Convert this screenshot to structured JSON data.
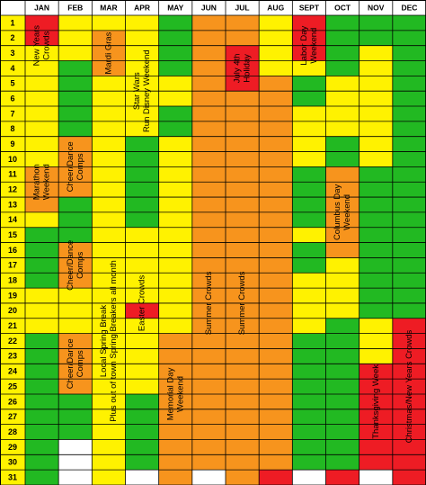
{
  "calendar": {
    "days": [
      1,
      2,
      3,
      4,
      5,
      6,
      7,
      8,
      9,
      10,
      11,
      12,
      13,
      14,
      15,
      16,
      17,
      18,
      19,
      20,
      21,
      22,
      23,
      24,
      25,
      26,
      27,
      28,
      29,
      30,
      31
    ],
    "palette": {
      "G": "#22b922",
      "Y": "#fff200",
      "O": "#f7941d",
      "R": "#ee1c24",
      "W": "#ffffff"
    },
    "months": [
      {
        "name": "JAN",
        "colors": "RRYYYYYYYYOOOYGGGGYYYGGGGGGGGGG",
        "notes": [
          {
            "lines": [
              "New Years",
              "Crowds"
            ],
            "days": [
              1,
              4
            ]
          },
          {
            "lines": [
              "Marathon",
              "Weekend"
            ],
            "days": [
              9,
              14
            ]
          }
        ]
      },
      {
        "name": "FEB",
        "colors": "YYYGGGGGOOOOGGGOOOYYYOOOOGGGWWW",
        "notes": [
          {
            "lines": [
              "Cheer/Dance",
              "Comps"
            ],
            "days": [
              8,
              13
            ]
          },
          {
            "lines": [
              "Cheer/Dance",
              "Comps"
            ],
            "days": [
              15,
              19
            ]
          },
          {
            "lines": [
              "Cheer/Dance",
              "Comps"
            ],
            "days": [
              21,
              26
            ]
          }
        ]
      },
      {
        "name": "MAR",
        "colors": "YOOOYYYYYYYYYYYYYYYYYYYYYYYYYYY",
        "notes": [
          {
            "lines": [
              "Mardi Gras"
            ],
            "days": [
              2,
              4
            ]
          },
          {
            "lines": [
              "Local Spring Break",
              "Plus out of town Spring Breakers all month"
            ],
            "days": [
              14,
              30
            ]
          }
        ]
      },
      {
        "name": "APR",
        "colors": "YYYYYYYYGGGGGGYYYYYRYYYYYGGGGGW",
        "notes": [
          {
            "lines": [
              "Star Wars",
              "Run Disney Weekend"
            ],
            "days": [
              3,
              8
            ]
          },
          {
            "lines": [
              "Easter Crowds"
            ],
            "days": [
              17,
              22
            ]
          }
        ]
      },
      {
        "name": "MAY",
        "colors": "GGGGYYGGYYYYYYYYYYYYYOOOOOOOOOO",
        "notes": [
          {
            "lines": [
              "Memorial Day",
              "Weekend"
            ],
            "days": [
              23,
              28
            ]
          }
        ]
      },
      {
        "name": "JUN",
        "colors": "OOOOOOOOOOOOOOOOOOOOOOOOOOOOOOW",
        "notes": [
          {
            "lines": [
              "Summer Crowds"
            ],
            "days": [
              14,
              25
            ]
          }
        ]
      },
      {
        "name": "JUL",
        "colors": "OORRROOOOOOOOOOOOOOOOOOOOOOOOOO",
        "notes": [
          {
            "lines": [
              "July 4th",
              "Holiday"
            ],
            "days": [
              3,
              5
            ]
          },
          {
            "lines": [
              "Summer Crowds"
            ],
            "days": [
              14,
              25
            ]
          }
        ]
      },
      {
        "name": "AUG",
        "colors": "YYYYOOOOOOOOOOOOOOOOOOOOOOOOOOR",
        "notes": []
      },
      {
        "name": "SEPT",
        "colors": "RRRYGGYYYYGGGGYGGYYYYGGGGGGGGGW",
        "notes": [
          {
            "lines": [
              "Labor Day",
              "Weekend"
            ],
            "days": [
              1,
              4
            ]
          }
        ]
      },
      {
        "name": "OCT",
        "colors": "GGGGYYYYGGOOOOOOYYYYGGGGGGGGGGR",
        "notes": [
          {
            "lines": [
              "Columbus Day",
              "Weekend"
            ],
            "days": [
              11,
              16
            ]
          }
        ]
      },
      {
        "name": "NOV",
        "colors": "GGYYYYYYYYGGGGGGGGGGYYYRRRRRRRW",
        "notes": [
          {
            "lines": [
              "Thanksgiving Week"
            ],
            "days": [
              21,
              31
            ]
          }
        ]
      },
      {
        "name": "DEC",
        "colors": "GGGGGGGGGGGGGGGGGGGGRRRRRRRRRRR",
        "notes": [
          {
            "lines": [
              "Christmas/New Years Crowds"
            ],
            "days": [
              19,
              31
            ]
          }
        ]
      }
    ]
  }
}
